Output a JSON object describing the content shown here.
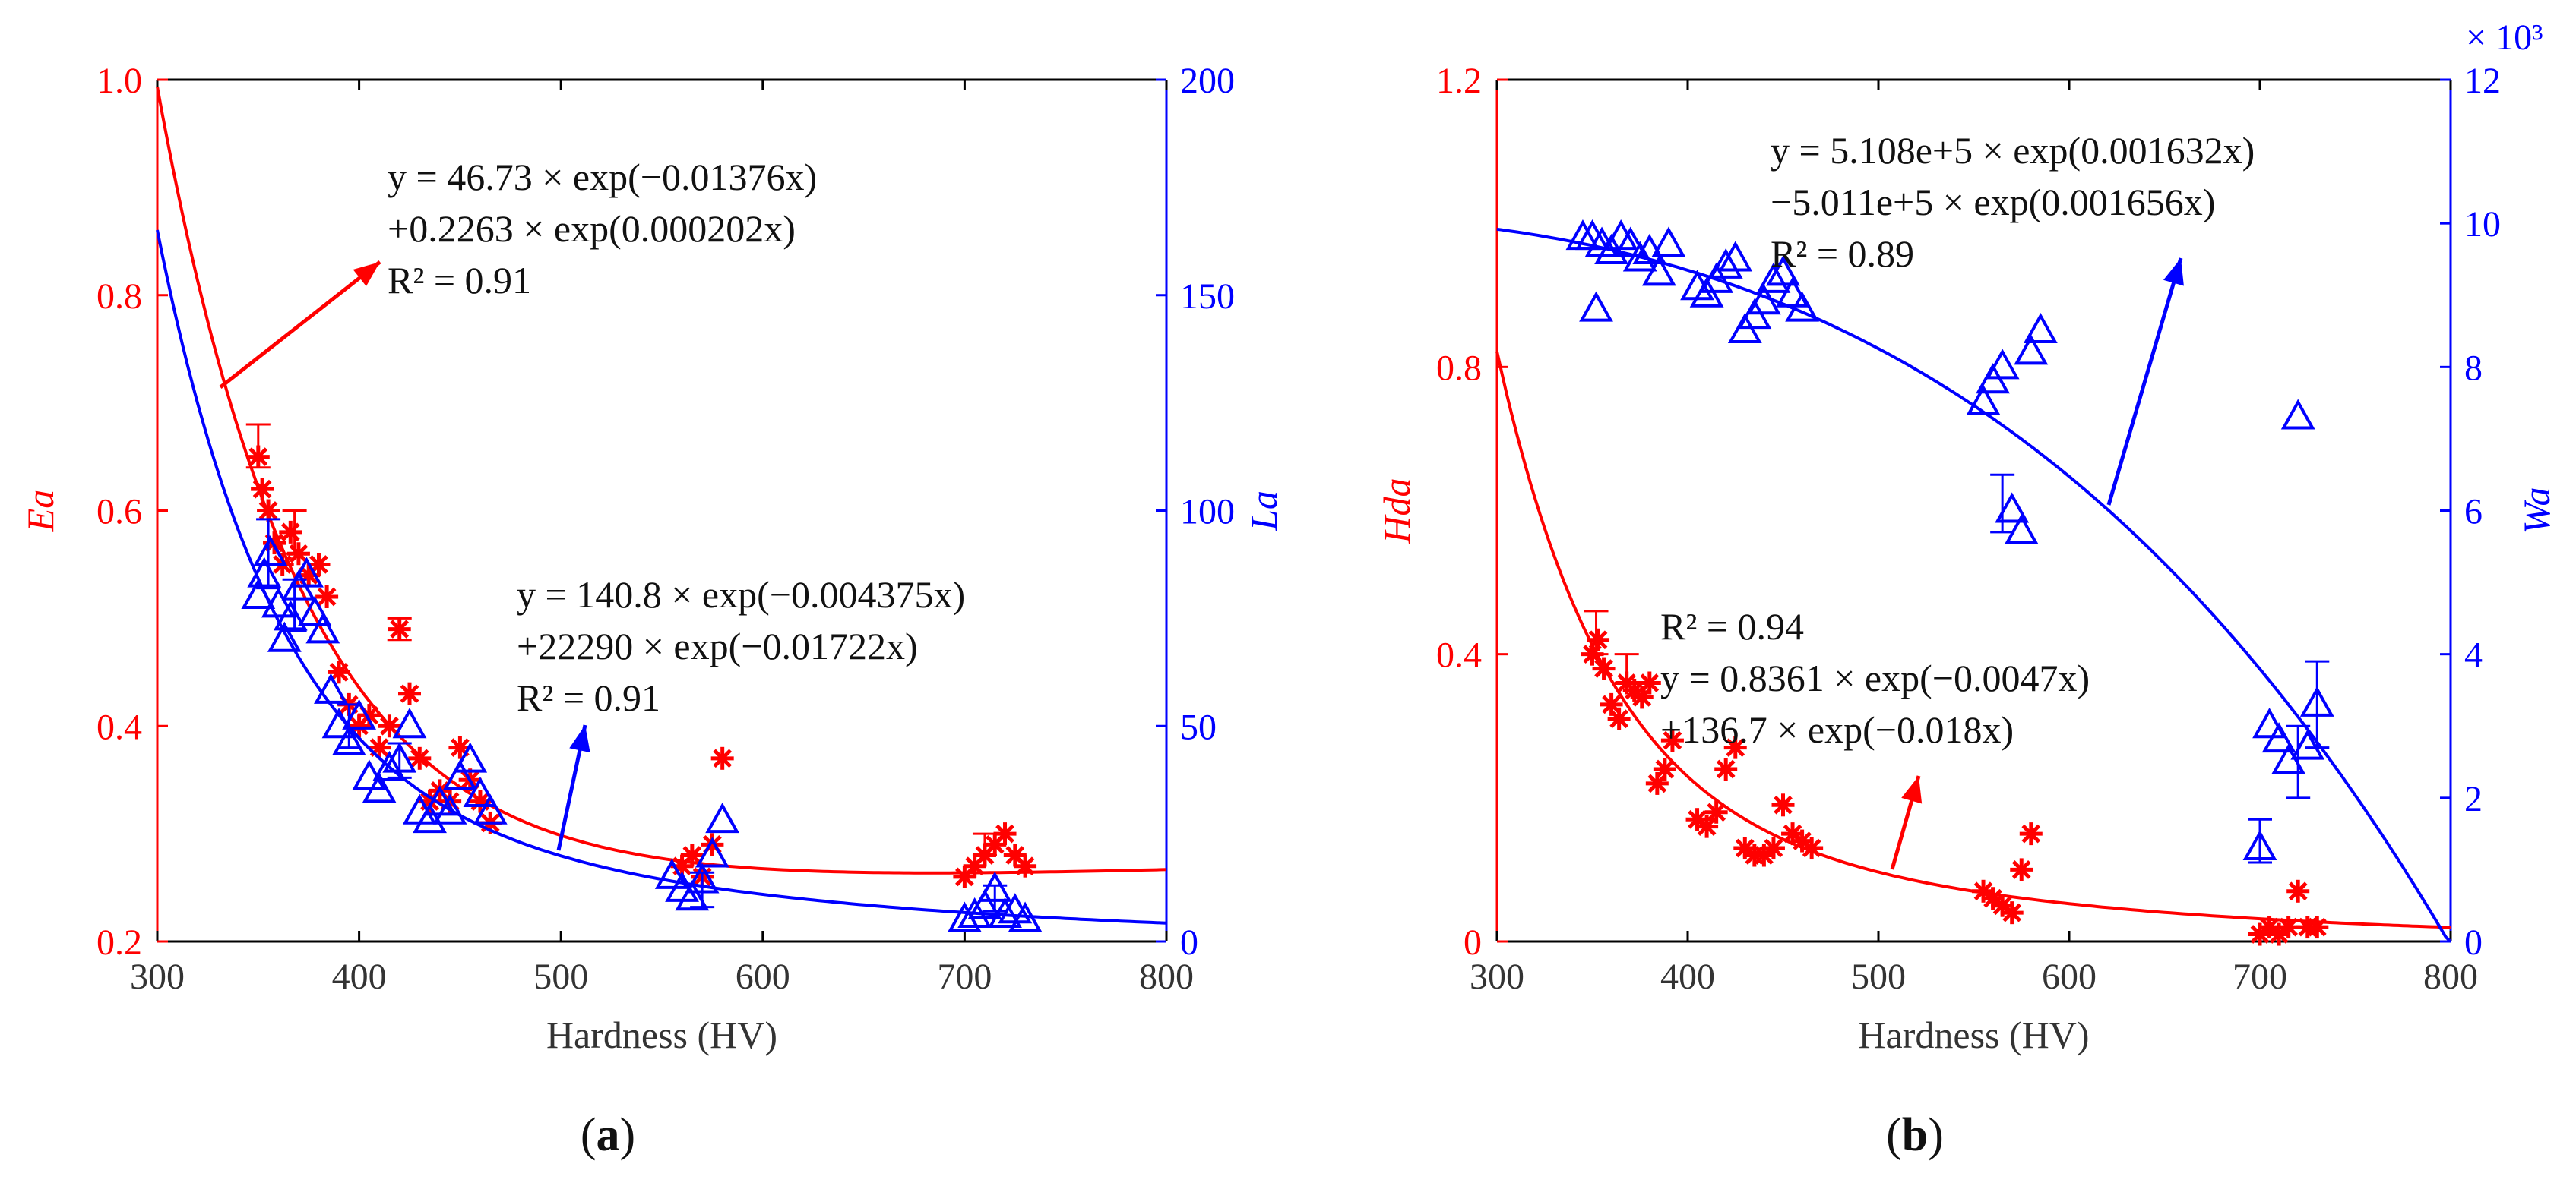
{
  "colors": {
    "red": "#ff0000",
    "blue": "#0000ff",
    "axis": "#000000",
    "text": "#111111"
  },
  "chart_data": [
    {
      "type": "scatter",
      "panel": "a",
      "caption": "a",
      "xlabel": "Hardness (HV)",
      "ylabel_left": "Ea",
      "ylabel_right": "La",
      "xlim": [
        300,
        800
      ],
      "ylim_left": [
        0.2,
        1.0
      ],
      "ylim_right": [
        0,
        200
      ],
      "xticks": [
        "300",
        "400",
        "500",
        "600",
        "700",
        "800"
      ],
      "yticks_left": [
        "0.2",
        "0.4",
        "0.6",
        "0.8",
        "1.0"
      ],
      "yticks_right": [
        "0",
        "50",
        "100",
        "150",
        "200"
      ],
      "series": [
        {
          "name": "Ea",
          "axis": "left",
          "color": "#ff0000",
          "marker": "asterisk",
          "points": [
            [
              350,
              0.65
            ],
            [
              352,
              0.62
            ],
            [
              355,
              0.6
            ],
            [
              358,
              0.57
            ],
            [
              362,
              0.55
            ],
            [
              366,
              0.58
            ],
            [
              370,
              0.56
            ],
            [
              375,
              0.54
            ],
            [
              380,
              0.55
            ],
            [
              384,
              0.52
            ],
            [
              390,
              0.45
            ],
            [
              395,
              0.42
            ],
            [
              400,
              0.4
            ],
            [
              405,
              0.41
            ],
            [
              410,
              0.38
            ],
            [
              415,
              0.4
            ],
            [
              420,
              0.49
            ],
            [
              425,
              0.43
            ],
            [
              430,
              0.37
            ],
            [
              435,
              0.33
            ],
            [
              440,
              0.34
            ],
            [
              445,
              0.33
            ],
            [
              450,
              0.38
            ],
            [
              455,
              0.35
            ],
            [
              460,
              0.33
            ],
            [
              465,
              0.31
            ],
            [
              560,
              0.27
            ],
            [
              565,
              0.28
            ],
            [
              570,
              0.26
            ],
            [
              575,
              0.29
            ],
            [
              580,
              0.37
            ],
            [
              700,
              0.26
            ],
            [
              705,
              0.27
            ],
            [
              710,
              0.28
            ],
            [
              715,
              0.29
            ],
            [
              720,
              0.3
            ],
            [
              725,
              0.28
            ],
            [
              730,
              0.27
            ]
          ],
          "error_bars": [
            [
              350,
              0.66,
              0.02
            ],
            [
              368,
              0.58,
              0.02
            ],
            [
              420,
              0.49,
              0.01
            ],
            [
              710,
              0.29,
              0.01
            ]
          ],
          "fit": {
            "a": 46.73,
            "b": -0.01376,
            "c": 0.2263,
            "d": 0.000202
          },
          "annotation": {
            "lines": [
              "y = 46.73 × exp(−0.01376x)",
              "+0.2263 × exp(0.000202x)",
              "R² = 0.91"
            ]
          }
        },
        {
          "name": "La",
          "axis": "right",
          "color": "#0000ff",
          "marker": "triangle",
          "points": [
            [
              350,
              80
            ],
            [
              353,
              85
            ],
            [
              356,
              90
            ],
            [
              360,
              78
            ],
            [
              363,
              70
            ],
            [
              366,
              75
            ],
            [
              370,
              82
            ],
            [
              374,
              85
            ],
            [
              378,
              76
            ],
            [
              382,
              72
            ],
            [
              386,
              58
            ],
            [
              390,
              50
            ],
            [
              395,
              46
            ],
            [
              400,
              52
            ],
            [
              405,
              38
            ],
            [
              410,
              35
            ],
            [
              415,
              40
            ],
            [
              420,
              42
            ],
            [
              425,
              50
            ],
            [
              430,
              30
            ],
            [
              435,
              28
            ],
            [
              440,
              32
            ],
            [
              445,
              30
            ],
            [
              450,
              38
            ],
            [
              455,
              42
            ],
            [
              460,
              34
            ],
            [
              465,
              30
            ],
            [
              555,
              15
            ],
            [
              560,
              12
            ],
            [
              565,
              10
            ],
            [
              570,
              14
            ],
            [
              575,
              20
            ],
            [
              580,
              28
            ],
            [
              700,
              5
            ],
            [
              705,
              6
            ],
            [
              710,
              8
            ],
            [
              715,
              12
            ],
            [
              720,
              6
            ],
            [
              725,
              7
            ],
            [
              730,
              5
            ]
          ],
          "error_bars": [
            [
              355,
              90,
              8
            ],
            [
              368,
              78,
              6
            ],
            [
              395,
              50,
              5
            ],
            [
              420,
              42,
              4
            ],
            [
              570,
              12,
              4
            ],
            [
              715,
              10,
              3
            ]
          ],
          "fit": {
            "a": 140.8,
            "b": -0.004375,
            "c": 22290,
            "d": -0.01722
          },
          "annotation": {
            "lines": [
              "y = 140.8 × exp(−0.004375x)",
              "+22290 × exp(−0.01722x)",
              "R² = 0.91"
            ]
          }
        }
      ]
    },
    {
      "type": "scatter",
      "panel": "b",
      "caption": "b",
      "xlabel": "Hardness (HV)",
      "ylabel_left": "Hda",
      "ylabel_right": "Wa",
      "xlim": [
        300,
        800
      ],
      "ylim_left": [
        0,
        1.2
      ],
      "ylim_right": [
        0,
        12
      ],
      "right_multiplier": "× 10³",
      "xticks": [
        "300",
        "400",
        "500",
        "600",
        "700",
        "800"
      ],
      "yticks_left": [
        "0",
        "0.4",
        "0.8",
        "1.2"
      ],
      "yticks_right": [
        "0",
        "2",
        "4",
        "6",
        "8",
        "10",
        "12"
      ],
      "series": [
        {
          "name": "Hda",
          "axis": "left",
          "color": "#ff0000",
          "marker": "asterisk",
          "points": [
            [
              350,
              0.4
            ],
            [
              353,
              0.42
            ],
            [
              356,
              0.38
            ],
            [
              360,
              0.33
            ],
            [
              364,
              0.31
            ],
            [
              368,
              0.36
            ],
            [
              372,
              0.35
            ],
            [
              376,
              0.34
            ],
            [
              380,
              0.36
            ],
            [
              384,
              0.22
            ],
            [
              388,
              0.24
            ],
            [
              392,
              0.28
            ],
            [
              405,
              0.17
            ],
            [
              410,
              0.16
            ],
            [
              415,
              0.18
            ],
            [
              420,
              0.24
            ],
            [
              425,
              0.27
            ],
            [
              430,
              0.13
            ],
            [
              435,
              0.12
            ],
            [
              440,
              0.12
            ],
            [
              445,
              0.13
            ],
            [
              450,
              0.19
            ],
            [
              455,
              0.15
            ],
            [
              460,
              0.14
            ],
            [
              465,
              0.13
            ],
            [
              555,
              0.07
            ],
            [
              560,
              0.06
            ],
            [
              565,
              0.05
            ],
            [
              570,
              0.04
            ],
            [
              575,
              0.1
            ],
            [
              580,
              0.15
            ],
            [
              700,
              0.01
            ],
            [
              705,
              0.02
            ],
            [
              710,
              0.01
            ],
            [
              715,
              0.02
            ],
            [
              720,
              0.07
            ],
            [
              725,
              0.02
            ],
            [
              730,
              0.02
            ]
          ],
          "error_bars": [
            [
              352,
              0.43,
              0.03
            ],
            [
              368,
              0.38,
              0.02
            ]
          ],
          "fit": {
            "a": 0.8361,
            "b": -0.0047,
            "c": 136.7,
            "d": -0.018
          },
          "annotation": {
            "lines": [
              "R² = 0.94",
              "y = 0.8361 × exp(−0.0047x)",
              "+136.7 × exp(−0.018x)"
            ]
          }
        },
        {
          "name": "Wa",
          "axis": "right",
          "color": "#0000ff",
          "marker": "triangle",
          "points": [
            [
              345,
              9.8
            ],
            [
              350,
              9.8
            ],
            [
              352,
              8.8
            ],
            [
              355,
              9.7
            ],
            [
              360,
              9.6
            ],
            [
              365,
              9.8
            ],
            [
              370,
              9.7
            ],
            [
              375,
              9.5
            ],
            [
              380,
              9.6
            ],
            [
              385,
              9.3
            ],
            [
              390,
              9.7
            ],
            [
              405,
              9.1
            ],
            [
              410,
              9.0
            ],
            [
              415,
              9.2
            ],
            [
              420,
              9.4
            ],
            [
              425,
              9.5
            ],
            [
              430,
              8.5
            ],
            [
              435,
              8.7
            ],
            [
              440,
              8.9
            ],
            [
              445,
              9.2
            ],
            [
              450,
              9.3
            ],
            [
              455,
              9.0
            ],
            [
              460,
              8.8
            ],
            [
              555,
              7.5
            ],
            [
              560,
              7.8
            ],
            [
              565,
              8.0
            ],
            [
              570,
              6.0
            ],
            [
              575,
              5.7
            ],
            [
              580,
              8.2
            ],
            [
              585,
              8.5
            ],
            [
              700,
              1.3
            ],
            [
              705,
              3.0
            ],
            [
              710,
              2.8
            ],
            [
              715,
              2.5
            ],
            [
              720,
              7.3
            ],
            [
              725,
              2.7
            ],
            [
              730,
              3.3
            ]
          ],
          "error_bars": [
            [
              565,
              6.1,
              0.4
            ],
            [
              700,
              1.4,
              0.3
            ],
            [
              730,
              3.3,
              0.6
            ],
            [
              720,
              2.5,
              0.5
            ]
          ],
          "fit": {
            "a": 510800,
            "b": 0.001632,
            "c": -501100,
            "d": 0.001656
          },
          "annotation": {
            "lines": [
              "y = 5.108e+5 × exp(0.001632x)",
              "−5.011e+5 × exp(0.001656x)",
              "R² = 0.89"
            ]
          }
        }
      ]
    }
  ]
}
